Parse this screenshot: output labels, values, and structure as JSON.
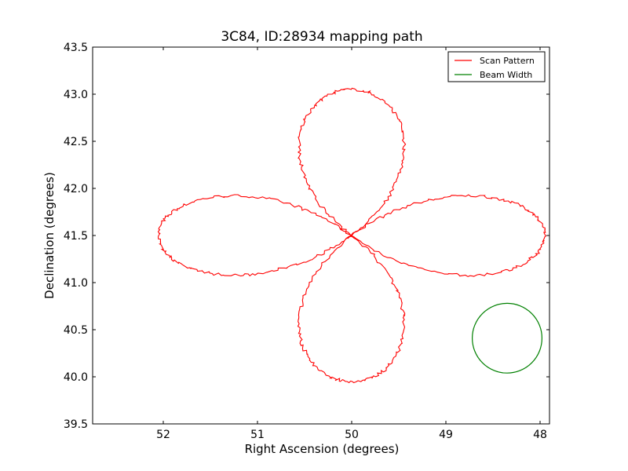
{
  "chart_data": {
    "type": "line",
    "title": "3C84, ID:28934 mapping path",
    "xlabel": "Right Ascension (degrees)",
    "ylabel": "Declination (degrees)",
    "xlim": [
      52.75,
      47.9
    ],
    "ylim": [
      39.5,
      43.5
    ],
    "x_inverted": true,
    "xticks": [
      52,
      51,
      50,
      49,
      48
    ],
    "xtick_labels": [
      "52",
      "51",
      "50",
      "49",
      "48"
    ],
    "yticks": [
      39.5,
      40.0,
      40.5,
      41.0,
      41.5,
      42.0,
      42.5,
      43.0,
      43.5
    ],
    "ytick_labels": [
      "39.5",
      "40.0",
      "40.5",
      "41.0",
      "41.5",
      "42.0",
      "42.5",
      "43.0",
      "43.5"
    ],
    "grid": false,
    "legend_position": "top-right",
    "series": [
      {
        "name": "Scan Pattern",
        "color": "#ff0000",
        "shape": "four-petal rose curve (scan path)",
        "center": [
          50.0,
          41.5
        ],
        "petal_extent_ra": 2.05,
        "petal_extent_dec": 1.55,
        "points_sampled": "every 15 degrees of the rose parameter",
        "x": [
          50.0,
          50.86,
          51.55,
          51.92,
          51.9,
          51.45,
          50.75,
          50.0,
          49.25,
          48.55,
          48.1,
          48.08,
          48.45,
          49.14,
          50.0,
          50.86,
          51.55,
          51.92,
          51.9,
          51.45,
          50.75,
          50.0,
          49.25,
          48.55,
          48.1,
          48.08,
          48.45,
          49.14,
          50.0
        ],
        "y": [
          41.5,
          41.85,
          41.9,
          41.7,
          41.3,
          41.1,
          41.12,
          41.5,
          41.88,
          41.9,
          41.7,
          41.3,
          41.1,
          41.15,
          41.5,
          41.85,
          41.9,
          41.7,
          41.3,
          41.1,
          41.12,
          41.5,
          41.88,
          41.9,
          41.7,
          41.3,
          41.1,
          41.15,
          41.5
        ]
      },
      {
        "name": "Beam Width",
        "color": "#008000",
        "shape": "circle",
        "center": [
          48.35,
          40.41
        ],
        "radius_dec": 0.37
      }
    ]
  }
}
